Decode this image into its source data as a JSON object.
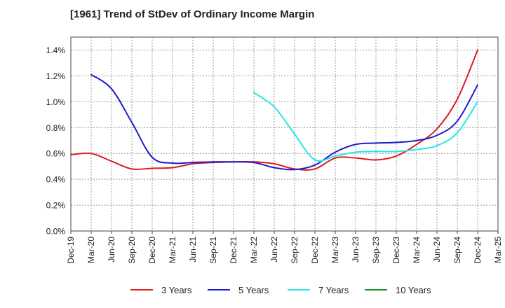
{
  "chart_data": {
    "type": "line",
    "title": "[1961]  Trend of StDev of Ordinary Income Margin",
    "xlabel": "",
    "ylabel": "",
    "x_ticks": [
      "Dec-19",
      "Mar-20",
      "Jun-20",
      "Sep-20",
      "Dec-20",
      "Mar-21",
      "Jun-21",
      "Sep-21",
      "Dec-21",
      "Mar-22",
      "Jun-22",
      "Sep-22",
      "Dec-22",
      "Mar-23",
      "Jun-23",
      "Sep-23",
      "Dec-23",
      "Mar-24",
      "Jun-24",
      "Sep-24",
      "Dec-24",
      "Mar-25"
    ],
    "y_ticks": [
      "0.0%",
      "0.2%",
      "0.4%",
      "0.6%",
      "0.8%",
      "1.0%",
      "1.2%",
      "1.4%"
    ],
    "ylim": [
      0,
      1.5
    ],
    "grid": true,
    "legend_position": "bottom",
    "series": [
      {
        "name": "3 Years",
        "color": "#dd1c1c",
        "x": [
          "Dec-19",
          "Mar-20",
          "Jun-20",
          "Sep-20",
          "Dec-20",
          "Mar-21",
          "Jun-21",
          "Sep-21",
          "Dec-21",
          "Mar-22",
          "Jun-22",
          "Sep-22",
          "Dec-22",
          "Mar-23",
          "Jun-23",
          "Sep-23",
          "Dec-23",
          "Mar-24",
          "Jun-24",
          "Sep-24",
          "Dec-24"
        ],
        "values": [
          0.59,
          0.6,
          0.54,
          0.48,
          0.485,
          0.49,
          0.52,
          0.53,
          0.535,
          0.535,
          0.52,
          0.48,
          0.48,
          0.565,
          0.565,
          0.55,
          0.58,
          0.67,
          0.79,
          1.02,
          1.4
        ]
      },
      {
        "name": "5 Years",
        "color": "#1c1ccc",
        "x": [
          "Mar-20",
          "Jun-20",
          "Sep-20",
          "Dec-20",
          "Mar-21",
          "Jun-21",
          "Sep-21",
          "Dec-21",
          "Mar-22",
          "Jun-22",
          "Sep-22",
          "Dec-22",
          "Mar-23",
          "Jun-23",
          "Sep-23",
          "Dec-23",
          "Mar-24",
          "Jun-24",
          "Sep-24",
          "Dec-24"
        ],
        "values": [
          1.21,
          1.1,
          0.84,
          0.57,
          0.525,
          0.53,
          0.535,
          0.535,
          0.53,
          0.49,
          0.475,
          0.51,
          0.61,
          0.67,
          0.68,
          0.685,
          0.7,
          0.74,
          0.85,
          1.13
        ]
      },
      {
        "name": "7 Years",
        "color": "#22e8e8",
        "x": [
          "Mar-22",
          "Jun-22",
          "Sep-22",
          "Dec-22",
          "Mar-23",
          "Jun-23",
          "Sep-23",
          "Dec-23",
          "Mar-24",
          "Jun-24",
          "Sep-24",
          "Dec-24"
        ],
        "values": [
          1.07,
          0.96,
          0.75,
          0.55,
          0.58,
          0.61,
          0.615,
          0.615,
          0.63,
          0.66,
          0.76,
          1.0
        ]
      },
      {
        "name": "10 Years",
        "color": "#1c8c1c",
        "x": [],
        "values": []
      }
    ]
  }
}
